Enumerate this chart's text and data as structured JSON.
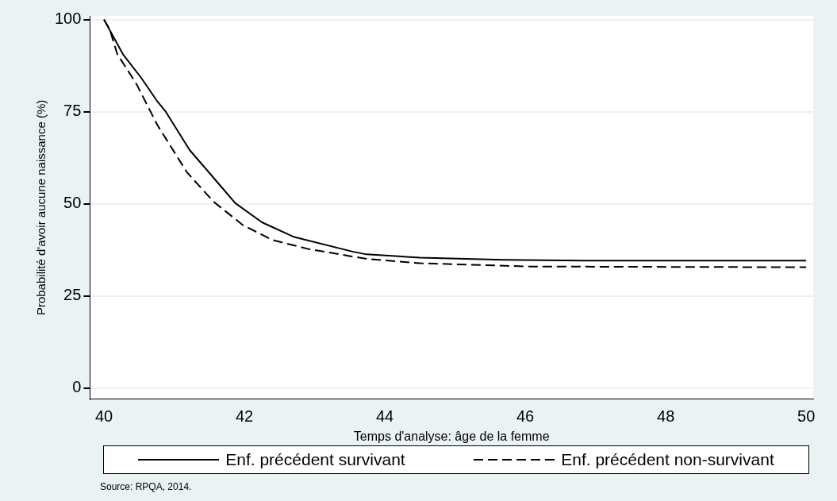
{
  "chart_data": {
    "type": "line",
    "xlabel": "Temps d'analyse: âge de la femme",
    "ylabel": "Probabilité d'avoir aucune naissance (%)",
    "xlim": [
      39.8,
      50.1
    ],
    "xticks": [
      40,
      42,
      44,
      46,
      48,
      50
    ],
    "ylim": [
      -3,
      101
    ],
    "yticks": [
      0,
      25,
      50,
      75,
      100
    ],
    "grid": "y",
    "legend": "bottom",
    "marker": "none",
    "series": [
      {
        "name": "Enf. précédent survivant",
        "color": "#000000",
        "line_style": "solid",
        "x": [
          40,
          40.27,
          40.53,
          40.76,
          40.88,
          41.22,
          41.6,
          41.87,
          42.25,
          42.71,
          43.55,
          43.74,
          44.5,
          45.69,
          46.84,
          50
        ],
        "values": [
          100,
          90.6,
          84.2,
          77.8,
          75,
          64.6,
          56.2,
          50.2,
          45,
          41,
          37,
          36.3,
          35.4,
          34.8,
          34.6,
          34.6
        ]
      },
      {
        "name": "Enf. précédent non-survivant",
        "color": "#000000",
        "line_style": "dashed",
        "x": [
          40,
          40.08,
          40.19,
          40.46,
          40.76,
          41.18,
          41.56,
          41.98,
          42.4,
          42.9,
          43.51,
          43.74,
          44.5,
          46.07,
          50
        ],
        "values": [
          100,
          97.4,
          90.6,
          82.6,
          71.4,
          58.6,
          50.6,
          44.2,
          40.2,
          37.8,
          35.8,
          35.1,
          33.9,
          33,
          32.8
        ]
      }
    ],
    "annotations": [
      "Source: RPQA, 2014."
    ]
  }
}
